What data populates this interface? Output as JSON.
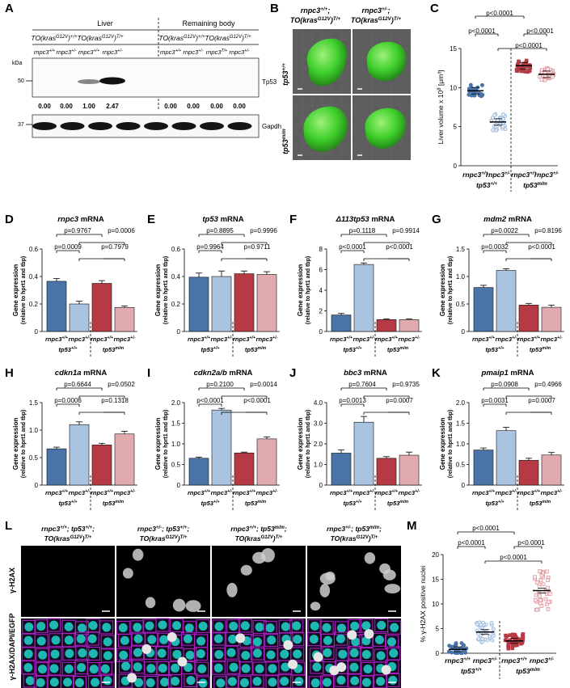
{
  "panels": {
    "A": {
      "letter": "A",
      "group_liver": "Liver",
      "group_body": "Remaining body",
      "genotypes": [
        "TO(kras",
        "G12V",
        ")",
        "+/+",
        "TO(kras",
        "G12V",
        ")",
        "T/+"
      ],
      "geno_labels": [
        {
          "base": "TO(kras",
          "sup": "G12V",
          "tail": ")",
          "sup2": "+/+"
        },
        {
          "base": "TO(kras",
          "sup": "G12V",
          "tail": ")",
          "sup2": "T/+"
        },
        {
          "base": "TO(kras",
          "sup": "G12V",
          "tail": ")",
          "sup2": "+/+"
        },
        {
          "base": "TO(kras",
          "sup": "G12V",
          "tail": ")",
          "sup2": "T/+"
        }
      ],
      "lanes": [
        {
          "base": "rnpc3",
          "sup": "+/+"
        },
        {
          "base": "rnpc3",
          "sup": "+/-"
        },
        {
          "base": "rnpc3",
          "sup": "+/+"
        },
        {
          "base": "rnpc3",
          "sup": "+/-"
        },
        {
          "base": "rnpc3",
          "sup": "+/+"
        },
        {
          "base": "rnpc3",
          "sup": "+/-"
        },
        {
          "base": "rnpc3",
          "sup": "T/+"
        },
        {
          "base": "rnpc3",
          "sup": "+/-"
        }
      ],
      "kda_label": "kDa",
      "marker_50": "50",
      "marker_37": "37",
      "band_label_1": "Tp53",
      "band_label_2": "Gapdh",
      "quant": [
        "0.00",
        "0.00",
        "1.00",
        "2.47",
        "0.00",
        "0.00",
        "0.00",
        "0.00"
      ]
    },
    "B": {
      "letter": "B",
      "col1_l1": "rnpc3",
      "col1_sup": "+/+",
      "col1_semi": ";",
      "col1_l2": "TO(kras",
      "col1_l2sup": "G12V",
      "col1_l2tail": ")",
      "col1_l2sup2": "T/+",
      "col2_l1": "rnpc3",
      "col2_sup": "+/-",
      "col2_semi": ";",
      "col2_l2": "TO(kras",
      "col2_l2sup": "G12V",
      "col2_l2tail": ")",
      "col2_l2sup2": "T/+",
      "row1": "tp53",
      "row1_sup": "+/+",
      "row2": "tp53",
      "row2_sup": "m/m"
    },
    "C": {
      "letter": "C",
      "ylabel": "Liver volume x 10",
      "ylabel_sup": "8",
      "ylabel_unit": " [μm³]",
      "pvals": [
        "p<0.0001",
        "p<0.0001",
        "p<0.0001",
        "p<0.0001",
        "p<0.0001"
      ],
      "xlabels": [
        {
          "base": "rnpc3",
          "sup": "+/+"
        },
        {
          "base": "rnpc3",
          "sup": "+/-"
        },
        {
          "base": "rnpc3",
          "sup": "+/+"
        },
        {
          "base": "rnpc3",
          "sup": "+/-"
        }
      ],
      "group_labels": [
        {
          "base": "tp53",
          "sup": "+/+"
        },
        {
          "base": "tp53",
          "sup": "m/m"
        }
      ]
    },
    "L": {
      "letter": "L",
      "cols": [
        {
          "l1": "rnpc3",
          "s1": "+/+",
          "mid": "; tp53",
          "s2": "+/+",
          "end": ";",
          "l2": "TO(kras",
          "s3": "G12V",
          "t2": ")",
          "s4": "T/+"
        },
        {
          "l1": "rnpc3",
          "s1": "+/-",
          "mid": "; tp53",
          "s2": "+/+",
          "end": ";",
          "l2": "TO(kras",
          "s3": "G12V",
          "t2": ")",
          "s4": "T/+"
        },
        {
          "l1": "rnpc3",
          "s1": "+/+",
          "mid": "; tp53",
          "s2": "m/m",
          "end": ";",
          "l2": "TO(kras",
          "s3": "G12V",
          "t2": ")",
          "s4": "T/+"
        },
        {
          "l1": "rnpc3",
          "s1": "+/-",
          "mid": "; tp53",
          "s2": "m/m",
          "end": ";",
          "l2": "TO(kras",
          "s3": "G12V",
          "t2": ")",
          "s4": "T/+"
        }
      ],
      "row1": "γ-H2AX",
      "row2": "γ-H2AX/DAPI/EGFP"
    },
    "M": {
      "letter": "M",
      "ylabel": "% γ-H2AX positive nuclei",
      "pvals": [
        "p<0.0001",
        "p<0.0001",
        "p<0.0001",
        "p<0.0001",
        "p<0.0001"
      ]
    }
  },
  "colors": {
    "c1": "#4a73a8",
    "c2": "#aac3e0",
    "c3": "#b53a44",
    "c4": "#e0aaaf"
  },
  "chart_data": [
    {
      "panel": "C",
      "type": "scatter",
      "categories": [
        "rnpc3+/+ tp53+/+",
        "rnpc3+/- tp53+/+",
        "rnpc3+/+ tp53m/m",
        "rnpc3+/- tp53m/m"
      ],
      "means": [
        9.6,
        5.6,
        12.8,
        11.7
      ],
      "ylim": [
        0,
        15
      ],
      "yticks": [
        0,
        5,
        10,
        15
      ]
    },
    {
      "panel": "D",
      "type": "bar",
      "title_gene": "rnpc3",
      "title_suffix": " mRNA",
      "ylabel": "Gene expression",
      "ylabel2": "(relative to hprt1 and tbp)",
      "values": [
        0.365,
        0.2,
        0.35,
        0.175
      ],
      "errors": [
        0.02,
        0.02,
        0.02,
        0.01
      ],
      "ylim": [
        0,
        0.6
      ],
      "yticks": [
        "0",
        "0.2",
        "0.4",
        "0.6"
      ],
      "ytickvals": [
        0,
        0.2,
        0.4,
        0.6
      ],
      "pvals": [
        "p=0.9767",
        "p=0.0006",
        "p=0.0009",
        "p=0.7979"
      ]
    },
    {
      "panel": "E",
      "type": "bar",
      "title_gene": "tp53",
      "title_suffix": " mRNA",
      "ylabel": "Gene expression",
      "ylabel2": "(relative to hprt1 and tbp)",
      "values": [
        0.395,
        0.4,
        0.42,
        0.415
      ],
      "errors": [
        0.03,
        0.04,
        0.02,
        0.02
      ],
      "ylim": [
        0,
        0.6
      ],
      "yticks": [
        "0",
        "0.2",
        "0.4",
        "0.6"
      ],
      "ytickvals": [
        0,
        0.2,
        0.4,
        0.6
      ],
      "pvals": [
        "p=0.8895",
        "p=0.9996",
        "p=0.9964",
        "p=0.9711"
      ]
    },
    {
      "panel": "F",
      "type": "bar",
      "title_gene": "Δ113tp53",
      "title_suffix": " mRNA",
      "ylabel": "Gene expression",
      "ylabel2": "(relative to hprt1 and tbp)",
      "values": [
        1.6,
        6.5,
        1.15,
        1.15
      ],
      "errors": [
        0.15,
        0.15,
        0.08,
        0.08
      ],
      "ylim": [
        0,
        8
      ],
      "yticks": [
        "0",
        "2",
        "4",
        "6",
        "8"
      ],
      "ytickvals": [
        0,
        2,
        4,
        6,
        8
      ],
      "pvals": [
        "p=0.1118",
        "p=0.9914",
        "p<0.0001",
        "p<0.0001"
      ]
    },
    {
      "panel": "G",
      "type": "bar",
      "title_gene": "mdm2",
      "title_suffix": " mRNA",
      "ylabel": "Gene expression",
      "ylabel2": "(relative to hprt1 and tbp)",
      "values": [
        0.8,
        1.11,
        0.48,
        0.44
      ],
      "errors": [
        0.04,
        0.03,
        0.03,
        0.04
      ],
      "ylim": [
        0,
        1.5
      ],
      "yticks": [
        "0",
        "0.5",
        "1.0",
        "1.5"
      ],
      "ytickvals": [
        0,
        0.5,
        1.0,
        1.5
      ],
      "pvals": [
        "p=0.0022",
        "p=0.8196",
        "p=0.0032",
        "p<0.0001"
      ]
    },
    {
      "panel": "H",
      "type": "bar",
      "title_gene": "cdkn1a",
      "title_suffix": " mRNA",
      "ylabel": "Gene expression",
      "ylabel2": "(relative to hprt1 and tbp)",
      "values": [
        0.66,
        1.1,
        0.73,
        0.93
      ],
      "errors": [
        0.03,
        0.05,
        0.03,
        0.05
      ],
      "ylim": [
        0,
        1.5
      ],
      "yticks": [
        "0",
        "0.5",
        "1.0",
        "1.5"
      ],
      "ytickvals": [
        0,
        0.5,
        1.0,
        1.5
      ],
      "pvals": [
        "p=0.6644",
        "p=0.0502",
        "p=0.0006",
        "p=0.1318"
      ]
    },
    {
      "panel": "I",
      "type": "bar",
      "title_gene": "cdkn2a/b",
      "title_suffix": " mRNA",
      "ylabel": "Gene expression",
      "ylabel2": "(relative to hprt1 and tbp)",
      "values": [
        0.65,
        1.82,
        0.78,
        1.12
      ],
      "errors": [
        0.03,
        0.04,
        0.02,
        0.05
      ],
      "ylim": [
        0,
        2.0
      ],
      "yticks": [
        "0",
        "0.5",
        "1.0",
        "1.5",
        "2.0"
      ],
      "ytickvals": [
        0,
        0.5,
        1.0,
        1.5,
        2.0
      ],
      "pvals": [
        "p=0.2100",
        "p=0.0014",
        "p<0.0001",
        "p<0.0001"
      ]
    },
    {
      "panel": "J",
      "type": "bar",
      "title_gene": "bbc3",
      "title_suffix": " mRNA",
      "ylabel": "Gene expression",
      "ylabel2": "(relative to hprt1 and tbp)",
      "values": [
        1.55,
        3.05,
        1.3,
        1.45
      ],
      "errors": [
        0.15,
        0.28,
        0.08,
        0.15
      ],
      "ylim": [
        0,
        4.0
      ],
      "yticks": [
        "0",
        "1.0",
        "2.0",
        "3.0",
        "4.0"
      ],
      "ytickvals": [
        0,
        1,
        2,
        3,
        4
      ],
      "pvals": [
        "p=0.7604",
        "p=0.9735",
        "p=0.0013",
        "p=0.0007"
      ]
    },
    {
      "panel": "K",
      "type": "bar",
      "title_gene": "pmaip1",
      "title_suffix": " mRNA",
      "ylabel": "Gene expression",
      "ylabel2": "(relative to hprt1 and tbp)",
      "values": [
        0.85,
        1.32,
        0.6,
        0.73
      ],
      "errors": [
        0.05,
        0.08,
        0.05,
        0.06
      ],
      "ylim": [
        0,
        2.0
      ],
      "yticks": [
        "0",
        "0.5",
        "1.0",
        "1.5",
        "2.0"
      ],
      "ytickvals": [
        0,
        0.5,
        1.0,
        1.5,
        2.0
      ],
      "pvals": [
        "p=0.0908",
        "p=0.4966",
        "p=0.0031",
        "p=0.0007"
      ]
    },
    {
      "panel": "M",
      "type": "scatter",
      "categories": [
        "rnpc3+/+ tp53+/+",
        "rnpc3+/- tp53+/+",
        "rnpc3+/+ tp53m/m",
        "rnpc3+/- tp53m/m"
      ],
      "means": [
        0.8,
        4.3,
        2.5,
        12.7
      ],
      "ylim": [
        0,
        20
      ],
      "yticks": [
        0,
        5,
        10,
        15,
        20
      ]
    }
  ]
}
